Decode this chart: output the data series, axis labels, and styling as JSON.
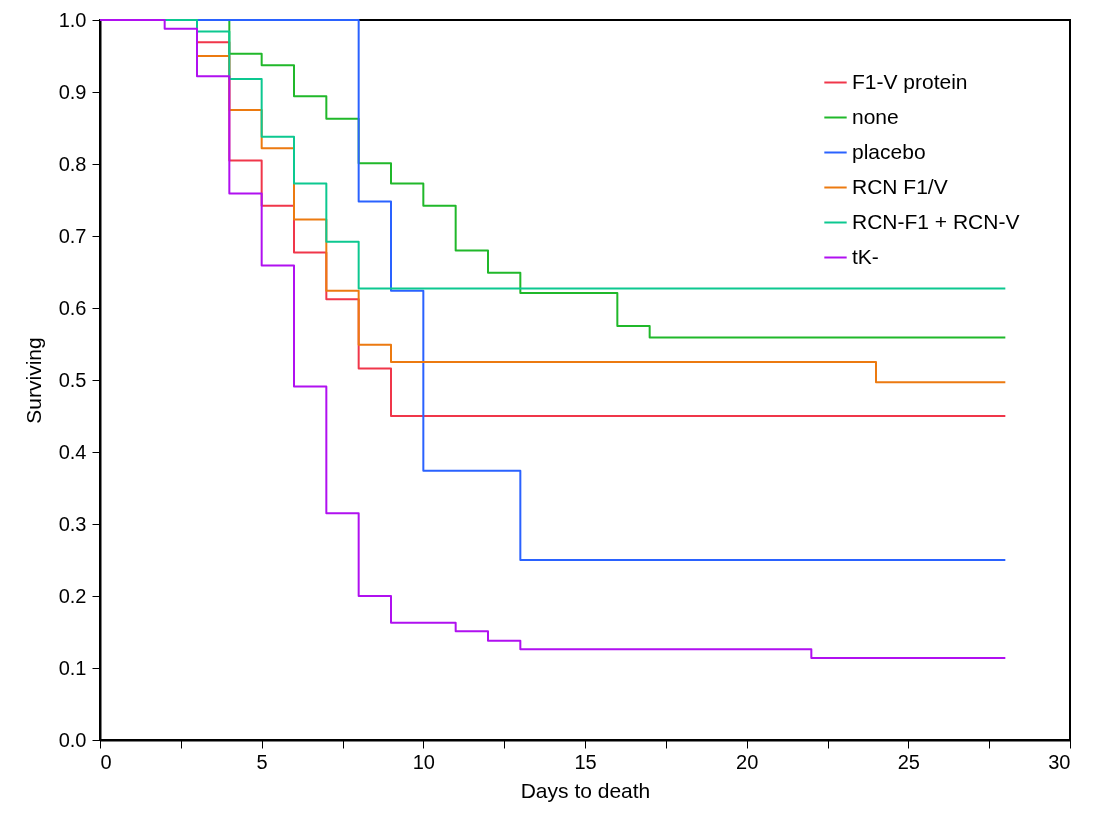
{
  "chart_data": {
    "type": "step",
    "xlabel": "Days to death",
    "ylabel": "Surviving",
    "xlim": [
      0,
      30
    ],
    "ylim": [
      0,
      1
    ],
    "xticks": [
      0,
      {
        "value": 2.5,
        "label": null
      },
      5,
      {
        "value": 7.5,
        "label": null
      },
      10,
      {
        "value": 12.5,
        "label": null
      },
      15,
      {
        "value": 17.5,
        "label": null
      },
      20,
      {
        "value": 22.5,
        "label": null
      },
      25,
      {
        "value": 27.5,
        "label": null
      },
      30
    ],
    "yticks": [
      {
        "value": 0,
        "label": "0.0"
      },
      0.1,
      0.2,
      0.3,
      0.4,
      0.5,
      0.6,
      0.7,
      0.8,
      0.9,
      {
        "value": 1,
        "label": "1.0"
      }
    ],
    "grid": false,
    "legend": "top right",
    "marker": "none",
    "line_style": "solid",
    "series": [
      {
        "name": "F1-V protein",
        "color": "#f0364a",
        "x": [
          0,
          3,
          4,
          5,
          6,
          7,
          8,
          9,
          28
        ],
        "values": [
          1,
          0.969,
          0.805,
          0.742,
          0.677,
          0.612,
          0.516,
          0.45,
          0.45
        ]
      },
      {
        "name": "none",
        "color": "#20b82a",
        "x": [
          0,
          4,
          5,
          6,
          7,
          8,
          9,
          10,
          11,
          12,
          13,
          16,
          17,
          28
        ],
        "values": [
          1,
          0.953,
          0.937,
          0.894,
          0.863,
          0.801,
          0.773,
          0.742,
          0.68,
          0.649,
          0.621,
          0.575,
          0.559,
          0.559
        ]
      },
      {
        "name": "placebo",
        "color": "#2a62ff",
        "x": [
          0,
          8,
          9,
          10,
          13,
          28
        ],
        "values": [
          1,
          0.748,
          0.624,
          0.374,
          0.25,
          0.25
        ]
      },
      {
        "name": "RCN F1/V",
        "color": "#ec7a10",
        "x": [
          0,
          3,
          4,
          5,
          6,
          7,
          8,
          9,
          24,
          28
        ],
        "values": [
          1,
          0.95,
          0.875,
          0.822,
          0.723,
          0.624,
          0.549,
          0.525,
          0.497,
          0.497
        ]
      },
      {
        "name": "RCN-F1 + RCN-V",
        "color": "#0cc890",
        "x": [
          0,
          3,
          4,
          5,
          6,
          7,
          8,
          28
        ],
        "values": [
          1,
          0.984,
          0.918,
          0.838,
          0.773,
          0.692,
          0.627,
          0.627
        ]
      },
      {
        "name": "tK-",
        "color": "#b010f0",
        "x": [
          0,
          2,
          3,
          4,
          5,
          6,
          7,
          8,
          9,
          11,
          12,
          13,
          22,
          28
        ],
        "values": [
          1,
          0.988,
          0.922,
          0.759,
          0.659,
          0.491,
          0.315,
          0.2,
          0.163,
          0.151,
          0.138,
          0.126,
          0.114,
          0.114
        ]
      }
    ]
  }
}
